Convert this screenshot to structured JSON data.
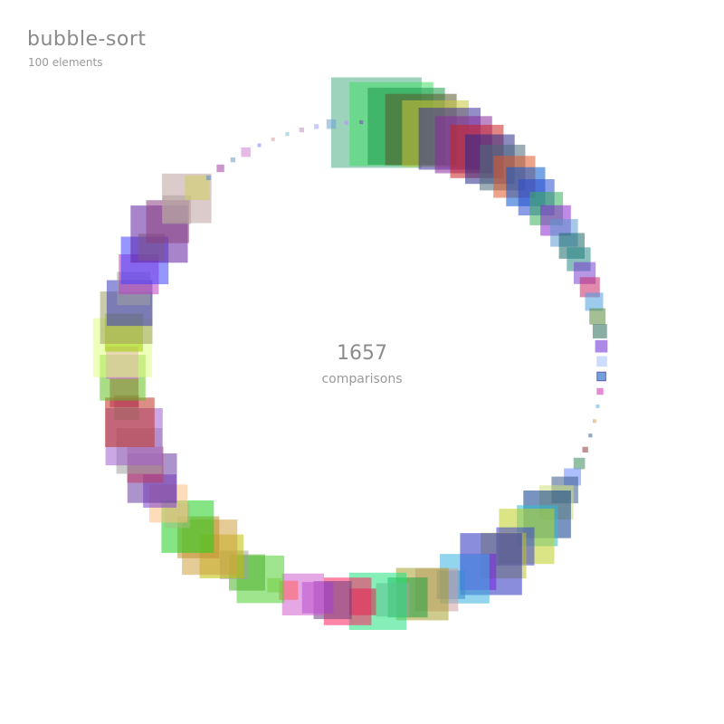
{
  "header": {
    "title": "bubble-sort",
    "subtitle": "100 elements"
  },
  "stats": {
    "count": "1657",
    "label": "comparisons"
  },
  "visualization": {
    "element_count": 100,
    "highlighted_index": 25,
    "values": [
      95,
      88,
      81,
      75,
      70,
      65,
      60,
      56,
      52,
      48,
      44,
      41,
      38,
      35,
      32,
      29,
      27,
      25,
      23,
      21,
      19,
      17,
      15,
      13,
      11,
      9,
      7,
      3,
      2,
      4,
      6,
      12,
      18,
      28,
      36,
      50,
      43,
      58,
      40,
      48,
      65,
      38,
      52,
      30,
      45,
      55,
      42,
      35,
      60,
      28,
      50,
      40,
      33,
      44,
      20,
      15,
      50,
      38,
      30,
      46,
      58,
      44,
      55,
      26,
      40,
      35,
      52,
      38,
      48,
      60,
      52,
      26,
      30,
      48,
      34,
      62,
      40,
      55,
      48,
      35,
      42,
      50,
      28,
      60,
      45,
      30,
      52,
      26,
      5,
      8,
      5,
      10,
      2,
      3,
      4,
      5,
      5,
      10,
      3,
      4
    ],
    "colors": [
      "#4caf85",
      "#44dd66",
      "#1f9a4e",
      "#5a5a2a",
      "#c9c83a",
      "#3a2f9a",
      "#8a2a9a",
      "#c82020",
      "#2a2a8a",
      "#4a6a7a",
      "#e05a2a",
      "#0a5ad0",
      "#2a4ad0",
      "#3ab05a",
      "#8a2ad0",
      "#5a9ad0",
      "#1a6a6a",
      "#2a8a8a",
      "#7a40d0",
      "#c82a6a",
      "#4aa0e0",
      "#5a8a3a",
      "#2a6a5a",
      "#6a2ad0",
      "#a0c0ff",
      "#3a7ad0",
      "#d02ab0",
      "#5ab0e0",
      "#d0a060",
      "#3a6a8a",
      "#8a3a3a",
      "#3a8a5a",
      "#6a8aff",
      "#3a5a8a",
      "#d0e080",
      "#0a3a8a",
      "#30c0d0",
      "#c0d020",
      "#3a40d0",
      "#c0c030",
      "#2a30c0",
      "#7a20e0",
      "#3ab0e0",
      "#3a8ad0",
      "#d0a0a0",
      "#a8a030",
      "#20a040",
      "#a0a0a0",
      "#20e080",
      "#d02040",
      "#ff2060",
      "#6a4080",
      "#a040d0",
      "#d060d0",
      "#ff6060",
      "#a0d060",
      "#50d030",
      "#50b030",
      "#a0a0a0",
      "#c0c000",
      "#d0a040",
      "#c09030",
      "#20d020",
      "#a0c080",
      "#ffc080",
      "#8040d0",
      "#6a3aa0",
      "#c03a60",
      "#a0a0a0",
      "#a060d0",
      "#c03020",
      "#a06060",
      "#c03050",
      "#60c020",
      "#e060e0",
      "#e0ff80",
      "#a0d000",
      "#a0a060",
      "#3a3ac0",
      "#a0a0a0",
      "#c040c0",
      "#4040ff",
      "#a0a070",
      "#6020a0",
      "#8a4080",
      "#a0a0a0",
      "#c0a0a0",
      "#d0d060",
      "#5a8ad0",
      "#a040a0",
      "#6a9ad0",
      "#d080d0",
      "#8080ff",
      "#d0a0a0",
      "#80c0c0",
      "#c090c0",
      "#a0a0ff",
      "#70a0d0",
      "#c080ff",
      "#8040c0"
    ]
  }
}
